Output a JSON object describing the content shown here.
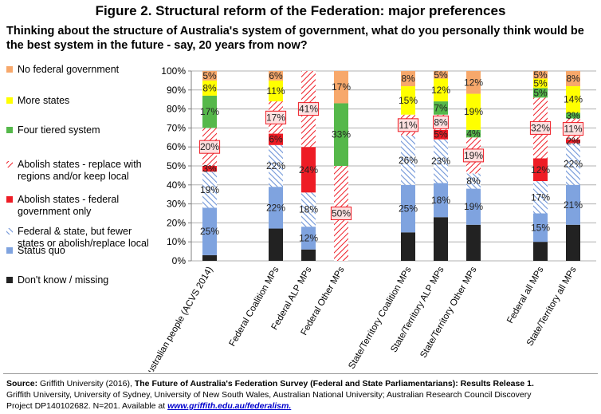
{
  "figure": {
    "title": "Figure 2. Structural reform of the Federation: major preferences",
    "question": "Thinking about the structure of Australia's system of government, what do you personally think would be the best system in the future - say, 20 years from now?"
  },
  "source": {
    "label": "Source:",
    "cite_prefix": " Griffith University (2016), ",
    "cite_title": "The Future of Australia's Federation Survey (Federal and State Parliamentarians): Results Release 1.",
    "line2": "Griffith University, University of Sydney, University of New South Wales, Australian National University; Australian Research Council Discovery",
    "line3": "Project DP140102682.  N=201.  Available at ",
    "link": "www.griffith.edu.au/federalism."
  },
  "chart_data": {
    "type": "bar",
    "stacked": true,
    "ylim": [
      0,
      100
    ],
    "y_ticks": [
      "0%",
      "10%",
      "20%",
      "30%",
      "40%",
      "50%",
      "60%",
      "70%",
      "80%",
      "90%",
      "100%"
    ],
    "legend_position": "left",
    "categories": [
      "Australian people (ACVS 2014)",
      "Federal Coalition MPs",
      "Federal ALP MPs",
      "Federal Other MPs",
      "State/Territory Coalition MPs",
      "State/Territory ALP MPs",
      "State/Territory Other MPs",
      "Federal all MPs",
      "State/Territory all MPs"
    ],
    "series": [
      {
        "name": "Don't know / missing",
        "color": "#222222",
        "pattern": "solid",
        "values": [
          3,
          17,
          6,
          0,
          15,
          23,
          19,
          10,
          19
        ],
        "labels": [
          "",
          "",
          "",
          "",
          "",
          "",
          "",
          "",
          ""
        ]
      },
      {
        "name": "Status quo",
        "color": "#7fa3df",
        "pattern": "solid",
        "values": [
          25,
          22,
          12,
          0,
          25,
          18,
          19,
          15,
          21
        ],
        "labels": [
          "25%",
          "22%",
          "12%",
          "",
          "25%",
          "18%",
          "19%",
          "15%",
          "21%"
        ]
      },
      {
        "name": "Federal & state, but fewer states or abolish/replace local",
        "color": "#6f95d8",
        "pattern": "hatch-blue",
        "values": [
          19,
          22,
          18,
          0,
          26,
          23,
          8,
          17,
          22
        ],
        "labels": [
          "19%",
          "22%",
          "18%",
          "",
          "26%",
          "23%",
          "8%",
          "17%",
          "22%"
        ]
      },
      {
        "name": "Abolish states - federal government only",
        "color": "#ee1c25",
        "pattern": "solid",
        "values": [
          3,
          6,
          24,
          0,
          0,
          5,
          0,
          12,
          2
        ],
        "labels": [
          "3%",
          "6%",
          "24%",
          "",
          "",
          "5%",
          "",
          "12%",
          "2%"
        ]
      },
      {
        "name": "Abolish states - replace with regions and/or keep local",
        "color": "#ee1c25",
        "pattern": "hatch-red",
        "values": [
          20,
          17,
          41,
          50,
          11,
          8,
          19,
          32,
          11
        ],
        "labels": [
          "20%",
          "17%",
          "41%",
          "50%",
          "11%",
          "8%",
          "19%",
          "32%",
          "11%"
        ]
      },
      {
        "name": "Four tiered system",
        "color": "#55b84a",
        "pattern": "solid",
        "values": [
          17,
          0,
          0,
          33,
          0,
          7,
          4,
          5,
          3
        ],
        "labels": [
          "17%",
          "",
          "",
          "33%",
          "",
          "7%",
          "4%",
          "5%",
          "3%"
        ]
      },
      {
        "name": "More states",
        "color": "#ffff00",
        "pattern": "solid",
        "values": [
          8,
          11,
          0,
          0,
          15,
          12,
          19,
          5,
          14
        ],
        "labels": [
          "8%",
          "11%",
          "",
          "",
          "15%",
          "12%",
          "19%",
          "5%",
          "14%"
        ]
      },
      {
        "name": "No federal government",
        "color": "#f7a86b",
        "pattern": "solid",
        "values": [
          5,
          6,
          0,
          17,
          8,
          5,
          12,
          5,
          8
        ],
        "labels": [
          "5%",
          "6%",
          "",
          "17%",
          "8%",
          "5%",
          "12%",
          "5%",
          "8%"
        ]
      }
    ],
    "legend": [
      {
        "label": "No federal government",
        "color": "#f7a86b",
        "pattern": "solid"
      },
      {
        "label": "More states",
        "color": "#ffff00",
        "pattern": "solid"
      },
      {
        "label": "Four tiered system",
        "color": "#55b84a",
        "pattern": "solid"
      },
      {
        "label": "Abolish states - replace with\nregions and/or keep local",
        "color": "#ee1c25",
        "pattern": "hatch-red"
      },
      {
        "label": "Abolish states - federal\ngovernment only",
        "color": "#ee1c25",
        "pattern": "solid"
      },
      {
        "label": "Federal & state, but fewer\nstates or abolish/replace local",
        "color": "#6f95d8",
        "pattern": "hatch-blue"
      },
      {
        "label": "Status quo",
        "color": "#7fa3df",
        "pattern": "solid"
      },
      {
        "label": "Don't know / missing",
        "color": "#222222",
        "pattern": "solid"
      }
    ]
  }
}
